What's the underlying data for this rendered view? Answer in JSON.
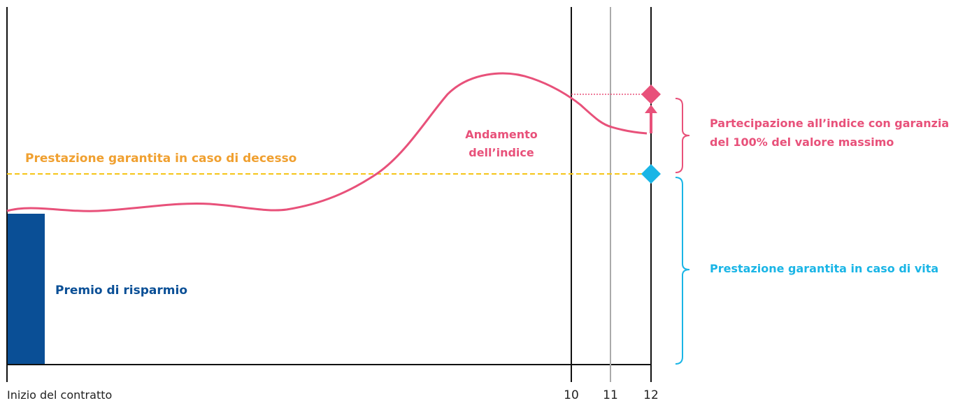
{
  "diagram": {
    "labels": {
      "start": "Inizio del contratto",
      "tick_10": "10",
      "tick_11": "11",
      "tick_12": "12",
      "premium": "Premio di risparmio",
      "death_benefit": "Prestazione garantita in caso di decesso",
      "index_trend_line1": "Andamento",
      "index_trend_line2": "dell’indice",
      "participation_line1": "Partecipazione all’indice con garanzia",
      "participation_line2": "del 100% del valore massimo",
      "life_benefit": "Prestazione garantita in caso di vita"
    },
    "colors": {
      "index_line": "#e8517a",
      "premium_bar": "#0a4f96",
      "death_line": "#f5c518",
      "death_text": "#f0a030",
      "life_guarantee": "#1ab5e6",
      "axis": "#111111",
      "year_11_line": "#aaaaaa"
    }
  }
}
